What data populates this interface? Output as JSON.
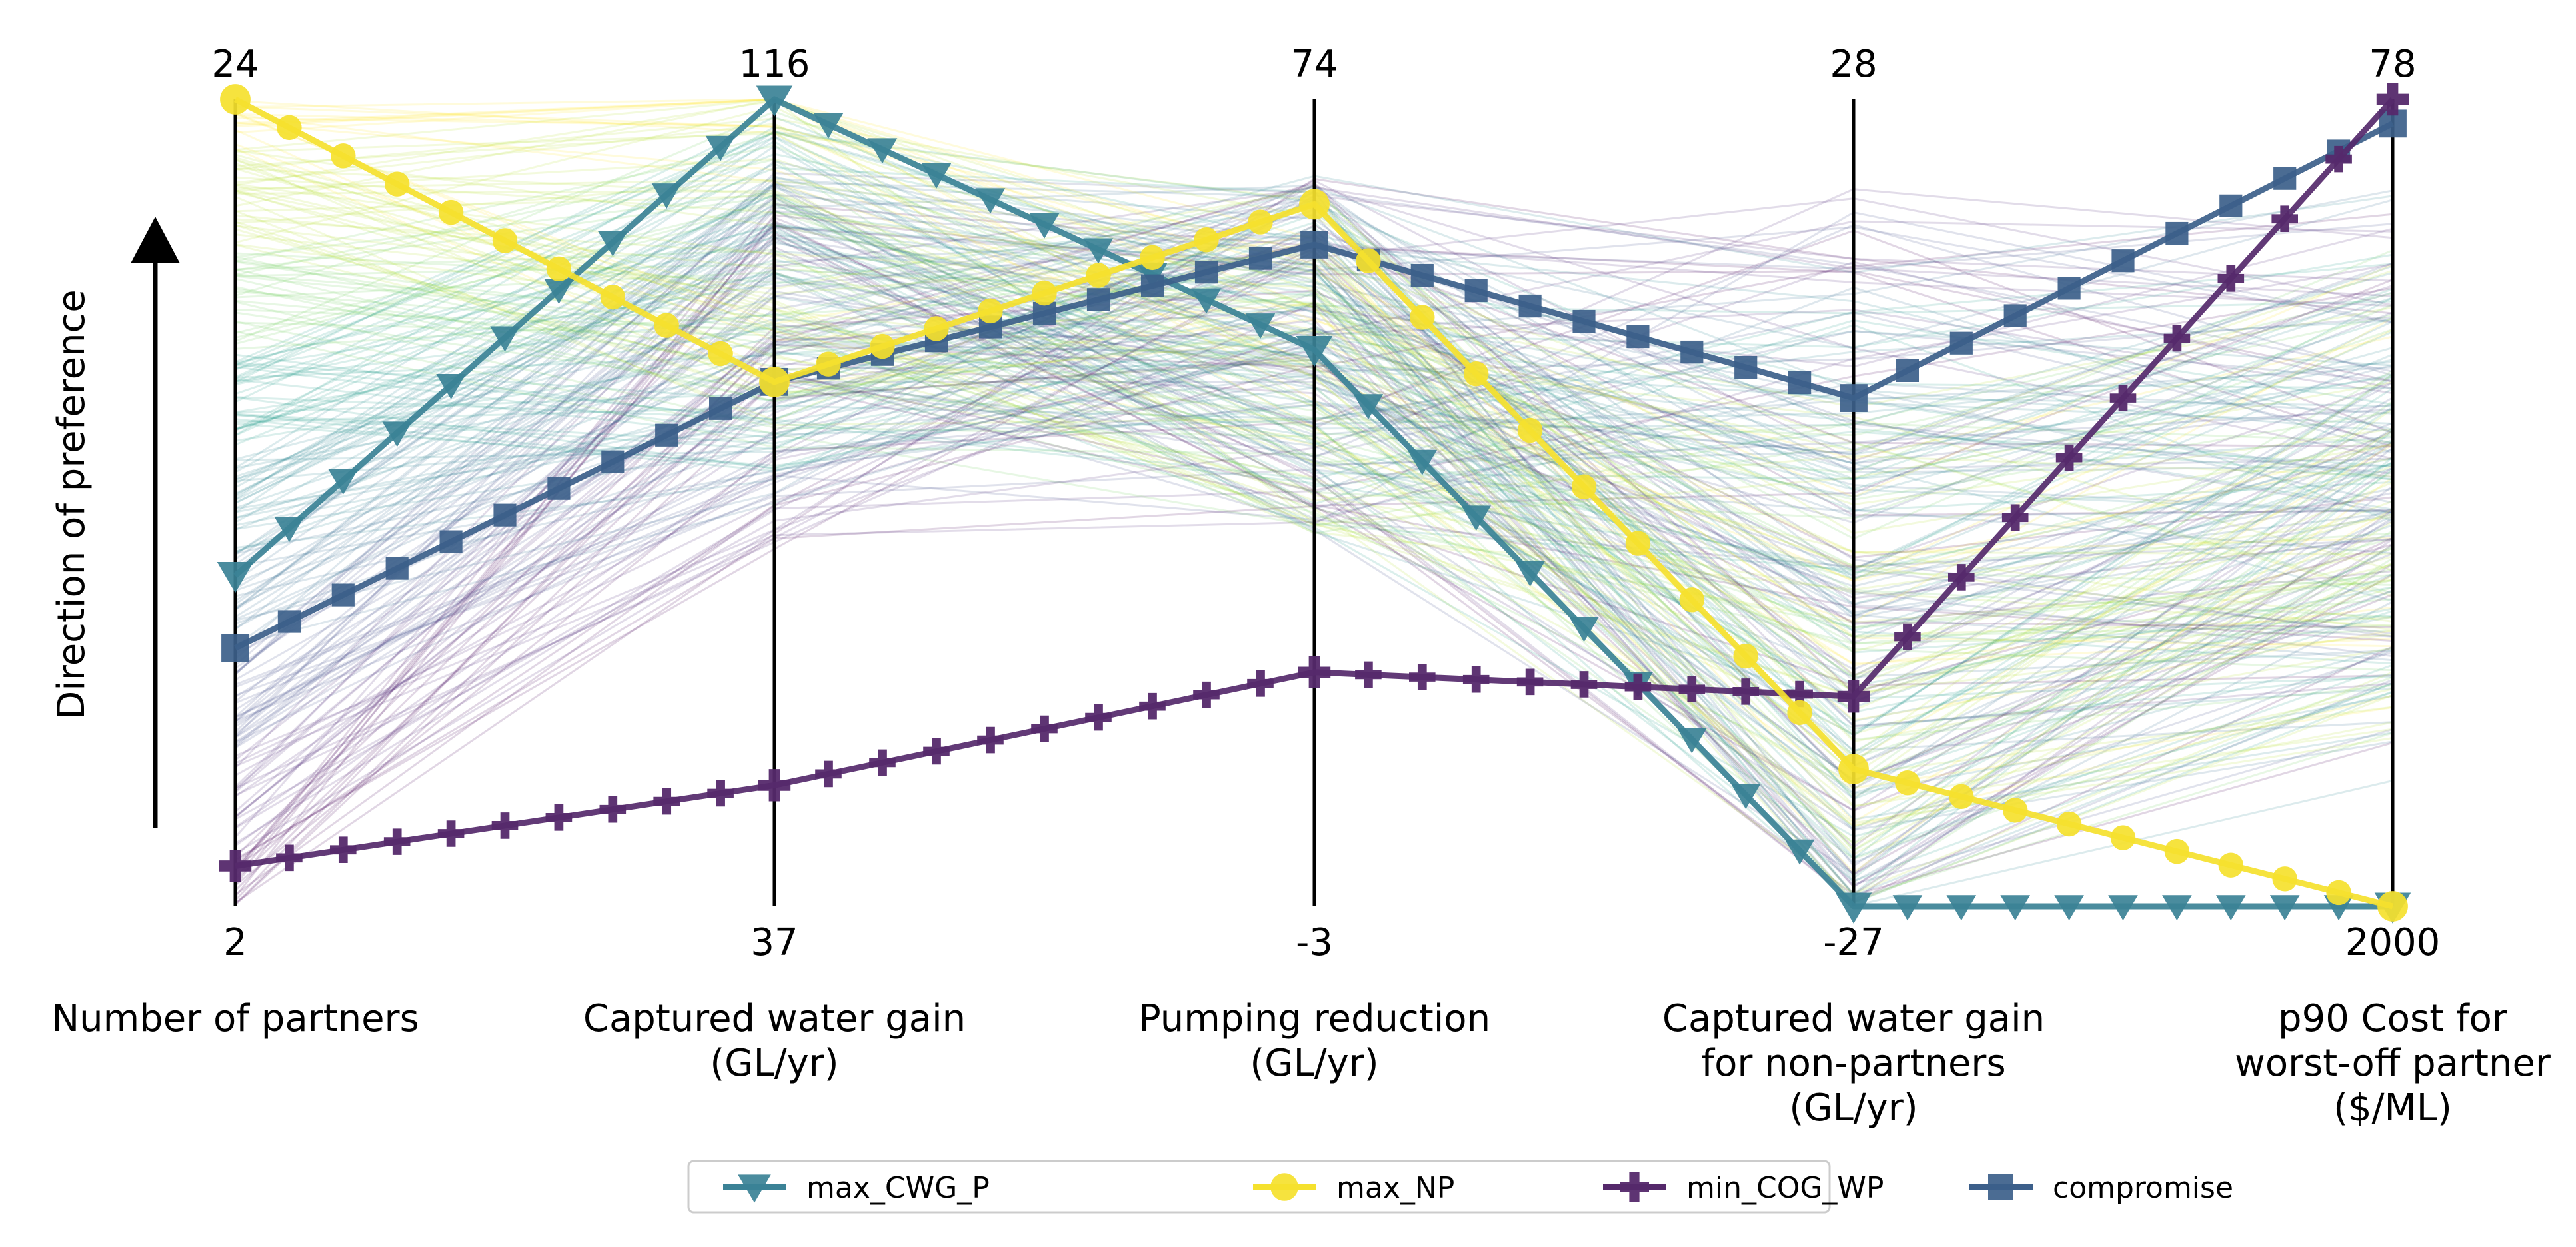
{
  "chart_data": {
    "type": "parallel_coordinates",
    "preference_label": "Direction of preference",
    "axes": [
      {
        "label": "Number of partners",
        "label_lines": [
          "Number of partners"
        ],
        "top": "24",
        "bottom": "2"
      },
      {
        "label": "Captured water gain (GL/yr)",
        "label_lines": [
          "Captured water gain",
          "(GL/yr)"
        ],
        "top": "116",
        "bottom": "37"
      },
      {
        "label": "Pumping reduction (GL/yr)",
        "label_lines": [
          "Pumping reduction",
          "(GL/yr)"
        ],
        "top": "74",
        "bottom": "-3"
      },
      {
        "label": "Captured water gain for non-partners (GL/yr)",
        "label_lines": [
          "Captured water gain",
          "for non-partners",
          "(GL/yr)"
        ],
        "top": "28",
        "bottom": "-27"
      },
      {
        "label": "p90 Cost for worst-off partner ($/ML)",
        "label_lines": [
          "p90 Cost for",
          "worst-off partner",
          "($/ML)"
        ],
        "top": "78",
        "bottom": "2000"
      }
    ],
    "scale_note": "Each axis normalized 0 (bottom) to 1 (top, preferred)",
    "highlighted_series": [
      {
        "name": "max_CWG_P",
        "marker": "triangle-down",
        "color": "#3b8296",
        "values": [
          0.41,
          1.0,
          0.69,
          0.0,
          0.0
        ]
      },
      {
        "name": "max_NP",
        "marker": "circle",
        "color": "#f5e12e",
        "values": [
          1.0,
          0.65,
          0.87,
          0.17,
          0.0
        ]
      },
      {
        "name": "min_COG_WP",
        "marker": "plus",
        "color": "#55296b",
        "values": [
          0.05,
          0.15,
          0.29,
          0.26,
          1.0
        ]
      },
      {
        "name": "compromise",
        "marker": "square",
        "color": "#3c5f8a",
        "values": [
          0.32,
          0.65,
          0.82,
          0.63,
          0.97
        ]
      }
    ],
    "background_lines": {
      "count": 260,
      "colormap": "viridis",
      "opacity": 0.16
    },
    "legend": {
      "placement": "bottom-center",
      "entries": [
        "max_CWG_P",
        "max_NP",
        "min_COG_WP",
        "compromise"
      ]
    }
  }
}
